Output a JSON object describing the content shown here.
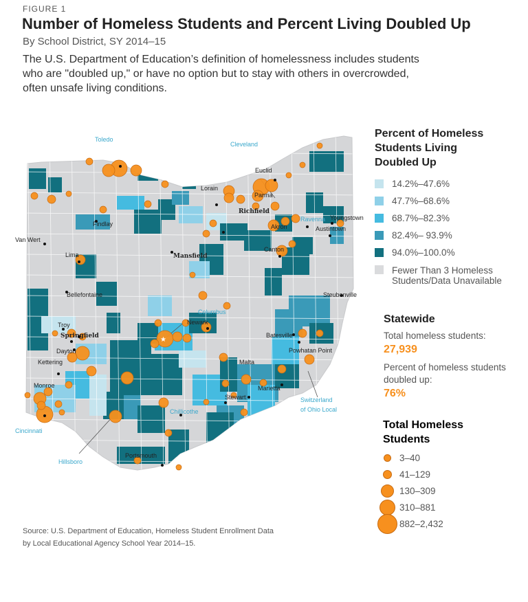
{
  "header": {
    "figure_label": "FIGURE 1",
    "title": "Number of Homeless Students and Percent Living Doubled Up",
    "subtitle": "By School District, SY 2014–15",
    "description": "The U.S. Department of Education’s definition of homelessness includes students who are \"doubled up,\" or have no option but to stay with others in overcrowded, often unsafe living conditions."
  },
  "map": {
    "cities": [
      "Toledo",
      "Cleveland",
      "Euclid",
      "Lorain",
      "Parma",
      "Richfield",
      "Ravenna",
      "Akron",
      "Youngstown",
      "Austintown",
      "Findlay",
      "Van Wert",
      "Lima",
      "Mansfield",
      "Canton",
      "Bellefontaine",
      "Steubenville",
      "Columbus",
      "Newark",
      "Troy",
      "Springfield",
      "Batesville",
      "Dayton",
      "Powhatan Point",
      "Kettering",
      "Malta",
      "Monroe",
      "Marietta",
      "Stewart",
      "Chillicothe",
      "Switzerland",
      "of Ohio Local",
      "Cincinnati",
      "Hillsboro",
      "Portsmouth"
    ]
  },
  "legend_percent": {
    "title_lines": [
      "Percent of Homeless",
      "Students Living",
      "Doubled Up"
    ],
    "items": [
      {
        "label": "14.2%–47.6%",
        "color": "#c5e4ee"
      },
      {
        "label": "47.7%–68.6%",
        "color": "#8fd0e8"
      },
      {
        "label": "68.7%–82.3%",
        "color": "#45bbe0"
      },
      {
        "label": "82.4%– 93.9%",
        "color": "#3a9ab8"
      },
      {
        "label": "94.0%–100.0%",
        "color": "#12707f"
      },
      {
        "label": "Fewer Than 3 Homeless",
        "label2": "Students/Data Unavailable",
        "color": "#dadbdd"
      }
    ]
  },
  "statewide": {
    "heading": "Statewide",
    "total_label": "Total homeless students:",
    "total_value": "27,939",
    "pct_label_1": "Percent of homeless students",
    "pct_label_2": "doubled up:",
    "pct_value": "76%"
  },
  "legend_size": {
    "title_lines": [
      "Total Homeless",
      "Students"
    ],
    "items": [
      {
        "label": "3–40"
      },
      {
        "label": "41–129"
      },
      {
        "label": "130–309"
      },
      {
        "label": "310–881"
      },
      {
        "label": "882–2,432"
      }
    ]
  },
  "source": {
    "line1": "Source: U.S. Department of Education, Homeless Student Enrollment Data",
    "line2": "by Local Educational Agency School Year 2014–15."
  },
  "colors": {
    "accent": "#f7901e",
    "base": "#d5d6d8"
  }
}
